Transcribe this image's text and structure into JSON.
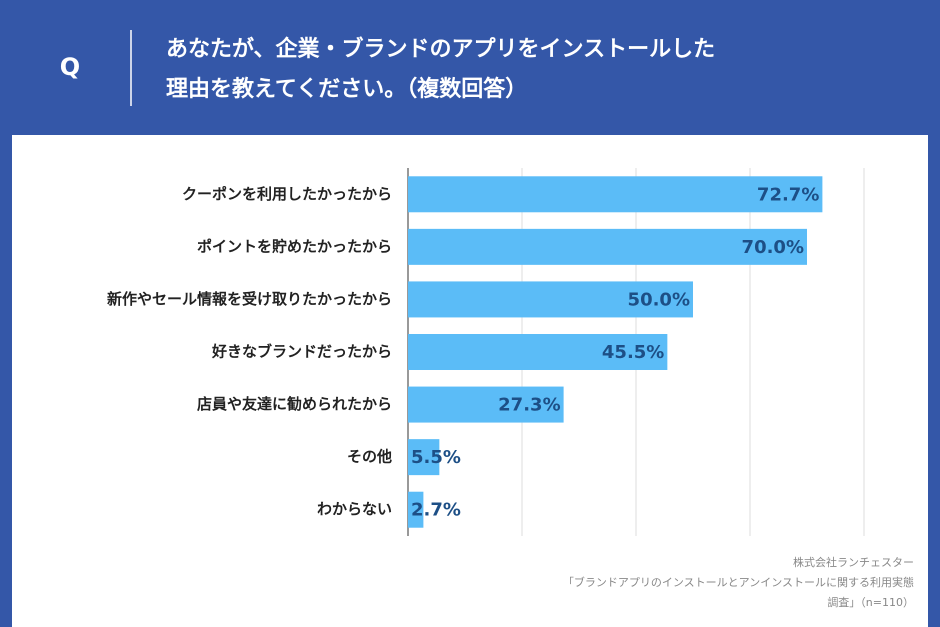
{
  "header": {
    "marker": "Q",
    "title_lines": [
      "あなたが、企業・ブランドのアプリをインストールした",
      "理由を教えてください。（複数回答）"
    ]
  },
  "chart_data": {
    "type": "bar",
    "orientation": "horizontal",
    "categories": [
      "クーポンを利用したかったから",
      "ポイントを貯めたかったから",
      "新作やセール情報を受け取りたかったから",
      "好きなブランドだったから",
      "店員や友達に勧められたから",
      "その他",
      "わからない"
    ],
    "values": [
      72.7,
      70.0,
      50.0,
      45.5,
      27.3,
      5.5,
      2.7
    ],
    "value_labels": [
      "72.7%",
      "70.0%",
      "50.0%",
      "45.5%",
      "27.3%",
      "5.5%",
      "2.7%"
    ],
    "color": "#5bbcf7",
    "xlim": [
      0,
      80
    ],
    "xticks": [
      0,
      20,
      40,
      60,
      80
    ],
    "grid": true
  },
  "source_lines": [
    "株式会社ランチェスター",
    "「ブランドアプリのインストールとアンインストールに関する利用実態",
    "調査」（n=110）"
  ]
}
